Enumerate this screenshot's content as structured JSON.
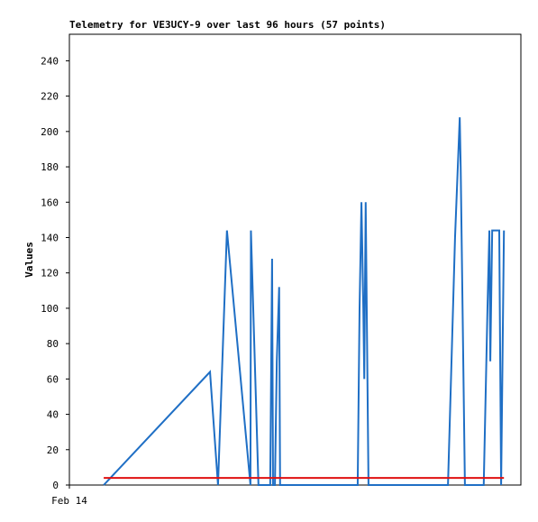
{
  "chart_data": {
    "type": "line",
    "title": "Telemetry for VE3UCY-9 over last 96 hours (57 points)",
    "ylabel": "Values",
    "xlim": [
      0,
      96
    ],
    "xticks": [
      {
        "value": 0,
        "label": "Feb 14"
      }
    ],
    "ylim": [
      0,
      255
    ],
    "yticks": [
      0,
      20,
      40,
      60,
      80,
      100,
      120,
      140,
      160,
      180,
      200,
      220,
      240
    ],
    "series": [
      {
        "color": "#1f6fc5",
        "x": [
          7.3,
          29.9,
          31.6,
          33.5,
          38.5,
          38.6,
          40.2,
          42.7,
          42.9,
          43.1,
          43.3,
          43.7,
          44.1,
          44.6,
          44.8,
          61.3,
          61.7,
          62.1,
          62.5,
          62.7,
          63.0,
          63.6,
          80.5,
          82.0,
          83.0,
          83.2,
          84.1,
          88.1,
          88.9,
          89.3,
          89.5,
          89.9,
          91.4,
          91.8,
          92.4
        ],
        "values": [
          0,
          64,
          0,
          144,
          0,
          144,
          0,
          0,
          64,
          128,
          0,
          0,
          70,
          112,
          0,
          0,
          100,
          160,
          100,
          60,
          160,
          0,
          0,
          140,
          208,
          180,
          0,
          0,
          100,
          144,
          70,
          144,
          144,
          0,
          144
        ]
      },
      {
        "color": "#e01010",
        "x": [
          7.3,
          92.4
        ],
        "values": [
          4,
          4
        ]
      }
    ]
  }
}
